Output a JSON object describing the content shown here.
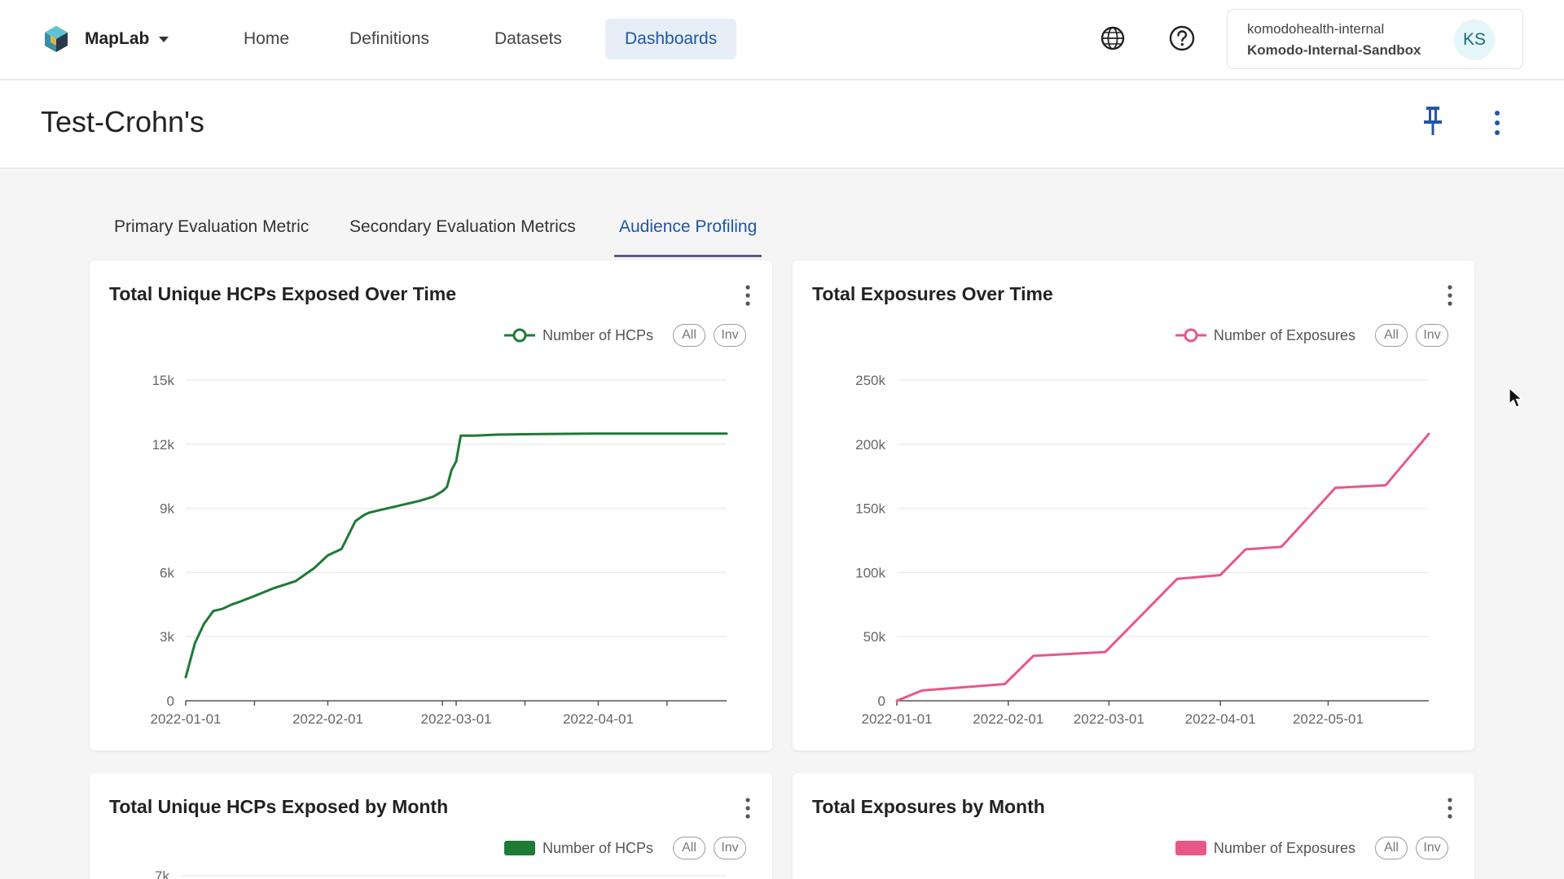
{
  "app": {
    "brand": "MapLab",
    "nav": [
      {
        "label": "Home"
      },
      {
        "label": "Definitions"
      },
      {
        "label": "Datasets"
      },
      {
        "label": "Dashboards"
      }
    ],
    "active_nav": "Dashboards",
    "account": {
      "org": "komodohealth-internal",
      "environment": "Komodo-Internal-Sandbox",
      "initials": "KS"
    },
    "icons": [
      "app-logo-icon",
      "caret-down-icon",
      "globe-icon",
      "help-icon",
      "pin-icon",
      "more-vertical-icon"
    ]
  },
  "page": {
    "title": "Test-Crohn's",
    "tabs": [
      {
        "label": "Primary Evaluation Metric"
      },
      {
        "label": "Secondary Evaluation Metrics"
      },
      {
        "label": "Audience Profiling"
      }
    ],
    "active_tab": "Audience Profiling"
  },
  "colors": {
    "hcp_series": "#1e7a34",
    "exposure_series": "#e8578a",
    "active_nav_bg": "#e7eef8",
    "accent_text": "#2056a6"
  },
  "legend_buttons": {
    "all": "All",
    "inv": "Inv"
  },
  "cards": [
    {
      "title": "Total Unique HCPs Exposed Over Time",
      "legend": "Number of HCPs",
      "legend_marker": "line-circle"
    },
    {
      "title": "Total Exposures Over Time",
      "legend": "Number of Exposures",
      "legend_marker": "line-circle"
    },
    {
      "title": "Total Unique HCPs Exposed by Month",
      "legend": "Number of HCPs",
      "legend_marker": "rect"
    },
    {
      "title": "Total Exposures by Month",
      "legend": "Number of Exposures",
      "legend_marker": "rect"
    }
  ],
  "chart_data": [
    {
      "type": "line",
      "title": "Total Unique HCPs Exposed Over Time",
      "xlabel": "",
      "ylabel": "",
      "x_type": "date",
      "xlim": [
        "2022-01-01",
        "2022-04-29"
      ],
      "ylim": [
        0,
        15000
      ],
      "yticks": [
        0,
        3000,
        6000,
        9000,
        12000,
        15000
      ],
      "ytick_labels": [
        "0",
        "3k",
        "6k",
        "9k",
        "12k",
        "15k"
      ],
      "xtick_labels": [
        "2022-01-01",
        "2022-02-01",
        "2022-03-01",
        "2022-04-01"
      ],
      "xtick_label_dates": [
        "2022-01-01",
        "2022-02-01",
        "2022-03-01",
        "2022-04-01"
      ],
      "minor_tick_dates": [
        "2022-01-16",
        "2022-02-26",
        "2022-03-16",
        "2022-04-16"
      ],
      "grid": true,
      "legend_position": "top-right",
      "series": [
        {
          "name": "Number of HCPs",
          "color": "#1e7a34",
          "x": [
            "2022-01-01",
            "2022-01-03",
            "2022-01-05",
            "2022-01-07",
            "2022-01-09",
            "2022-01-11",
            "2022-01-13",
            "2022-01-16",
            "2022-01-20",
            "2022-01-25",
            "2022-01-29",
            "2022-02-01",
            "2022-02-04",
            "2022-02-07",
            "2022-02-08",
            "2022-02-09",
            "2022-02-10",
            "2022-02-12",
            "2022-02-15",
            "2022-02-18",
            "2022-02-21",
            "2022-02-24",
            "2022-02-26",
            "2022-02-27",
            "2022-02-28",
            "2022-03-01",
            "2022-03-02",
            "2022-03-05",
            "2022-03-10",
            "2022-03-20",
            "2022-03-31",
            "2022-04-15",
            "2022-04-29"
          ],
          "values": [
            1100,
            2700,
            3600,
            4200,
            4300,
            4500,
            4650,
            4900,
            5250,
            5600,
            6200,
            6800,
            7100,
            8400,
            8550,
            8700,
            8800,
            8900,
            9050,
            9200,
            9350,
            9550,
            9800,
            10000,
            10800,
            11200,
            12400,
            12400,
            12450,
            12480,
            12500,
            12500,
            12500
          ]
        }
      ]
    },
    {
      "type": "line",
      "title": "Total Exposures Over Time",
      "xlabel": "",
      "ylabel": "",
      "x_type": "date",
      "xlim": [
        "2022-01-01",
        "2022-05-29"
      ],
      "ylim": [
        0,
        250000
      ],
      "yticks": [
        0,
        50000,
        100000,
        150000,
        200000,
        250000
      ],
      "ytick_labels": [
        "0",
        "50k",
        "100k",
        "150k",
        "200k",
        "250k"
      ],
      "xtick_labels": [
        "2022-01-01",
        "2022-02-01",
        "2022-03-01",
        "2022-04-01",
        "2022-05-01"
      ],
      "xtick_label_dates": [
        "2022-01-01",
        "2022-02-01",
        "2022-03-01",
        "2022-04-01",
        "2022-05-01"
      ],
      "minor_tick_dates": [],
      "grid": true,
      "legend_position": "top-right",
      "series": [
        {
          "name": "Number of Exposures",
          "color": "#e8578a",
          "x": [
            "2022-01-01",
            "2022-01-08",
            "2022-01-31",
            "2022-02-08",
            "2022-02-28",
            "2022-03-20",
            "2022-04-01",
            "2022-04-08",
            "2022-04-18",
            "2022-05-03",
            "2022-05-17",
            "2022-05-29"
          ],
          "values": [
            0,
            8000,
            13000,
            35000,
            38000,
            95000,
            98000,
            118000,
            120000,
            166000,
            168000,
            208000
          ]
        }
      ]
    },
    {
      "type": "bar",
      "title": "Total Unique HCPs Exposed by Month",
      "ytick_labels": [
        "7k"
      ],
      "series": [
        {
          "name": "Number of HCPs",
          "color": "#1e7a34",
          "values": []
        }
      ]
    },
    {
      "type": "bar",
      "title": "Total Exposures by Month",
      "series": [
        {
          "name": "Number of Exposures",
          "color": "#e8578a",
          "values": []
        }
      ]
    }
  ]
}
